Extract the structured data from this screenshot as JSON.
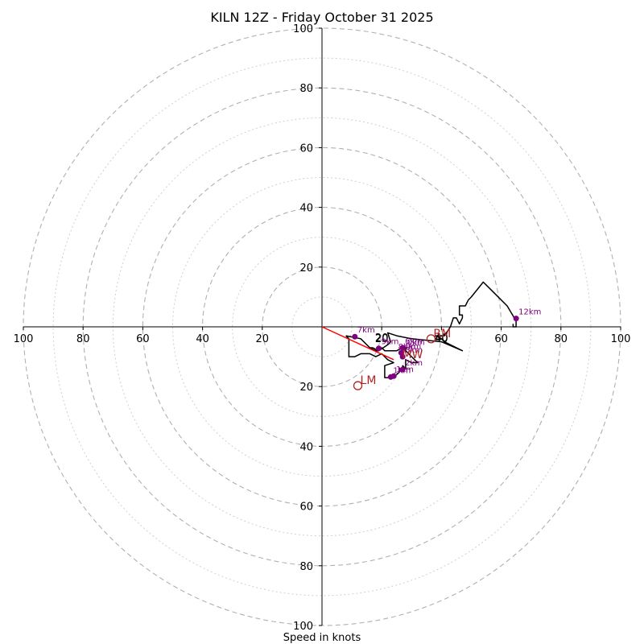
{
  "chart_data": {
    "type": "hodograph",
    "title": "KILN 12Z - Friday October 31 2025",
    "xlabel": "Speed in knots",
    "units": "knots",
    "max_speed": 100,
    "ring_major": [
      20,
      40,
      60,
      80,
      100
    ],
    "ring_minor": [
      10,
      30,
      50,
      70,
      90
    ],
    "axis_ticks": [
      "20",
      "40",
      "60",
      "80",
      "100"
    ],
    "colors": {
      "trace": "#000000",
      "heights": "#800080",
      "storm": "#b22222",
      "motion_vector": "#ff0000",
      "grid": "#b0b0b0"
    },
    "trace": [
      [
        8,
        -3
      ],
      [
        13,
        -4
      ],
      [
        16,
        -7
      ],
      [
        16,
        -7
      ],
      [
        18,
        -8
      ],
      [
        19,
        -8
      ],
      [
        22,
        -6
      ],
      [
        23,
        -5
      ],
      [
        22,
        -2
      ],
      [
        25,
        -3
      ],
      [
        30,
        -4
      ],
      [
        40,
        -5
      ],
      [
        47,
        -8
      ],
      [
        43,
        -6
      ],
      [
        41,
        -5
      ],
      [
        40,
        -4
      ],
      [
        38,
        -3
      ],
      [
        41,
        -3
      ],
      [
        43,
        0
      ],
      [
        44,
        3
      ],
      [
        45,
        3
      ],
      [
        46,
        1
      ],
      [
        47,
        3
      ],
      [
        47,
        4
      ],
      [
        46,
        4
      ],
      [
        46,
        7
      ],
      [
        48,
        7
      ],
      [
        49,
        9
      ],
      [
        50,
        10
      ],
      [
        54,
        15
      ],
      [
        56,
        13
      ],
      [
        58,
        11
      ],
      [
        62,
        7
      ],
      [
        65,
        2
      ],
      [
        65,
        0
      ],
      [
        64,
        0
      ],
      [
        64,
        1
      ]
    ],
    "trace_lower": [
      [
        8,
        -3
      ],
      [
        9,
        -4
      ],
      [
        9,
        -10
      ],
      [
        9,
        -10
      ],
      [
        11,
        -10
      ],
      [
        13,
        -9
      ],
      [
        16,
        -9
      ],
      [
        18,
        -10
      ],
      [
        20,
        -9
      ],
      [
        22,
        -11
      ],
      [
        24,
        -12
      ],
      [
        21,
        -13
      ],
      [
        21,
        -17
      ],
      [
        23,
        -17
      ],
      [
        24,
        -17
      ],
      [
        25,
        -16
      ],
      [
        26,
        -15
      ],
      [
        26,
        -14
      ],
      [
        27,
        -14
      ],
      [
        27,
        -13
      ],
      [
        28,
        -14
      ],
      [
        28,
        -12
      ],
      [
        28,
        -11
      ],
      [
        30,
        -12
      ],
      [
        32,
        -12
      ],
      [
        31,
        -11
      ],
      [
        30,
        -10
      ],
      [
        29,
        -9
      ],
      [
        28,
        -8
      ],
      [
        28,
        -7
      ],
      [
        27,
        -7
      ],
      [
        25,
        -8
      ],
      [
        22,
        -8
      ],
      [
        21,
        -8
      ],
      [
        20,
        -7
      ],
      [
        19,
        -8
      ],
      [
        17,
        -7
      ],
      [
        16,
        -7
      ]
    ],
    "heights": [
      {
        "label": "12km",
        "u": 65,
        "v": 2.8
      },
      {
        "label": "7km",
        "u": 11,
        "v": -3.3
      },
      {
        "label": "9km",
        "u": 19,
        "v": -7.2
      },
      {
        "label": "6km",
        "u": 27,
        "v": -7
      },
      {
        "label": "4km",
        "u": 26.5,
        "v": -8.7
      },
      {
        "label": "3km",
        "u": 27,
        "v": -10
      },
      {
        "label": "2km",
        "u": 27,
        "v": -14.3
      },
      {
        "label": "1km",
        "u": 24,
        "v": -16.5
      },
      {
        "label": "1km",
        "u": 23,
        "v": -16.8
      }
    ],
    "extra_height_labels": [
      {
        "label": "0km",
        "u": 28.5,
        "v": -6
      },
      {
        "label": "8km",
        "u": 25.5,
        "v": -7.5
      }
    ],
    "storm_points": [
      {
        "label": "RM",
        "u": 36.5,
        "v": -4
      },
      {
        "label": "LM",
        "u": 12,
        "v": -19.7
      },
      {
        "label": "MW",
        "u": 26,
        "v": -11
      }
    ],
    "motion_vector": {
      "from": [
        0,
        0
      ],
      "to": [
        24,
        -11
      ]
    },
    "axis_labels": {
      "twenty": "20",
      "forty": "40"
    }
  }
}
